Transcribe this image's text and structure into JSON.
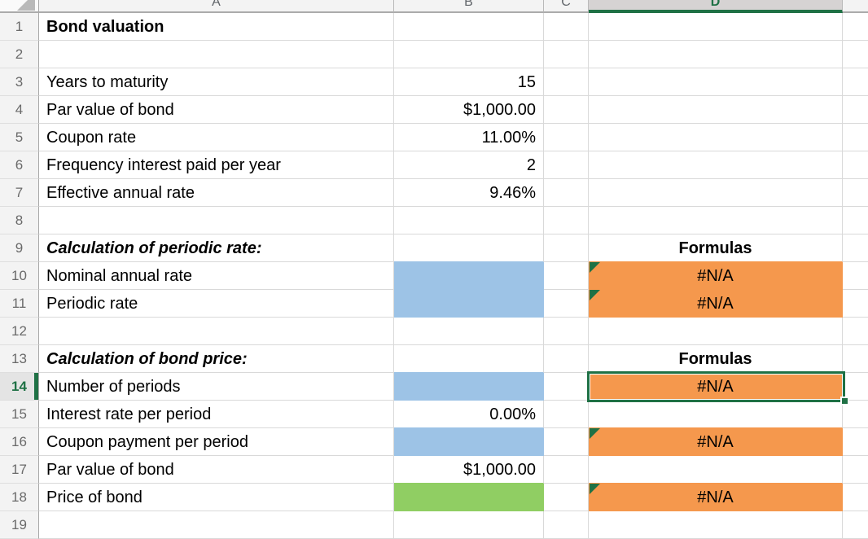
{
  "column_headers": [
    "A",
    "B",
    "C",
    "D"
  ],
  "row_numbers": [
    "1",
    "2",
    "3",
    "4",
    "5",
    "6",
    "7",
    "8",
    "9",
    "10",
    "11",
    "12",
    "13",
    "14",
    "15",
    "16",
    "17",
    "18",
    "19"
  ],
  "cells": {
    "a1": "Bond valuation",
    "a3": "Years to maturity",
    "b3": "15",
    "a4": "Par value of bond",
    "b4": "$1,000.00",
    "a5": "Coupon rate",
    "b5": "11.00%",
    "a6": "Frequency interest paid per year",
    "b6": "2",
    "a7": "Effective annual rate",
    "b7": "9.46%",
    "a9": "Calculation of periodic rate:",
    "d9": "Formulas",
    "a10": "Nominal annual rate",
    "d10": "#N/A",
    "a11": "Periodic rate",
    "d11": "#N/A",
    "a13": "Calculation of bond price:",
    "d13": "Formulas",
    "a14": "Number of periods",
    "d14": "#N/A",
    "a15": "Interest rate per period",
    "b15": "0.00%",
    "a16": "Coupon payment per period",
    "d16": "#N/A",
    "a17": "Par value of bond",
    "b17": "$1,000.00",
    "a18": "Price of bond",
    "d18": "#N/A"
  },
  "selection": {
    "active_cell": "D14",
    "active_column": "D",
    "active_row": "14"
  },
  "colors": {
    "input_fill_blue": "#9DC3E6",
    "result_fill_green": "#90CE63",
    "formula_fill_orange": "#F5984D",
    "selection_green": "#1F7145",
    "gridline": "#D9D9D9",
    "header_bg": "#F3F3F3",
    "selected_header_bg": "#D6D3D3"
  }
}
